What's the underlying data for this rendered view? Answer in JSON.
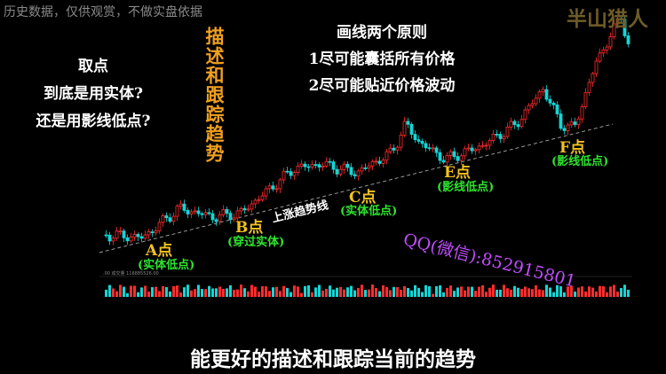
{
  "notice": "历史数据，仅供观赏，不做实盘依据",
  "watermark": "半山猎人",
  "question": {
    "title": "取点",
    "lines": [
      "到底是用实体?",
      "还是用影线低点?"
    ]
  },
  "vertical_caption": "描述和跟踪趋势",
  "principles": {
    "title": "画线两个原则",
    "items": [
      "1尽可能囊括所有价格",
      "2尽可能贴近价格波动"
    ]
  },
  "points": [
    {
      "label": "A点",
      "note": "(实体低点)"
    },
    {
      "label": "B点",
      "note": "(穿过实体)"
    },
    {
      "label": "C点",
      "note": "(实体低点)"
    },
    {
      "label": "E点",
      "note": "(影线低点)"
    },
    {
      "label": "F点",
      "note": "(影线低点)"
    }
  ],
  "trend_label": "上涨趋势线",
  "contact": "QQ(微信):852915801",
  "volume_label": ".00 成交量 116885526.00",
  "footer": "能更好的描述和跟踪当前的趋势"
}
